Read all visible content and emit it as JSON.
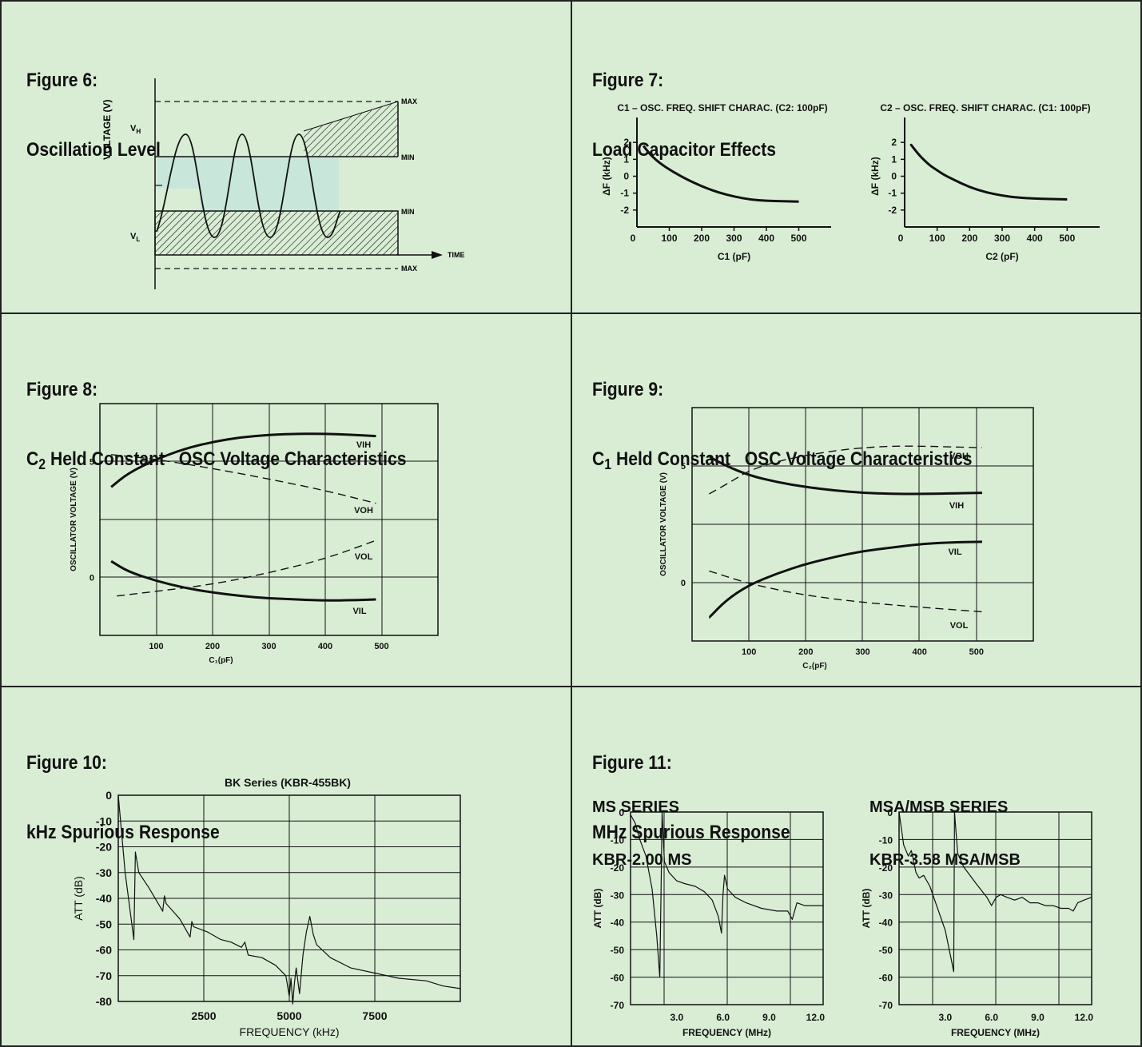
{
  "figures": [
    {
      "number": "Figure 6:",
      "title": "Oscillation Level"
    },
    {
      "number": "Figure 7:",
      "title": "Load Capacitor Effects"
    },
    {
      "number": "Figure 8:",
      "title_main": "C",
      "title_sub": "2",
      "title_rest": " Held Constant   OSC Voltage Characteristics"
    },
    {
      "number": "Figure 9:",
      "title_main": "C",
      "title_sub": "1",
      "title_rest": " Held Constant   OSC Voltage Characteristics"
    },
    {
      "number": "Figure 10:",
      "title": "kHz Spurious Response"
    },
    {
      "number": "Figure 11:",
      "title": "MHz Spurious Response"
    }
  ],
  "fig6": {
    "ylabel": "VOLTAGE (V)",
    "vh": "V",
    "vh_sub": "H",
    "vl": "V",
    "vl_sub": "L",
    "max": "MAX",
    "min": "MIN",
    "time": "TIME"
  },
  "fig11_labels": {
    "ms_series": "MS SERIES",
    "ms_model": "KBR-2.00 MS",
    "msa_series": "MSA/MSB SERIES",
    "msa_model": "KBR-3.58 MSA/MSB"
  },
  "colors": {
    "background": "#d9edd5",
    "ink": "#111111",
    "band": "#c6e4dc"
  },
  "chart_data": [
    {
      "id": "fig7a",
      "type": "line",
      "title": "C1 – OSC. FREQ. SHIFT CHARAC. (C2: 100pF)",
      "xlabel": "C1 (pF)",
      "ylabel": "ΔF (kHz)",
      "xlim": [
        0,
        600
      ],
      "ylim": [
        -3,
        3
      ],
      "xticks": [
        100,
        200,
        300,
        400,
        500
      ],
      "yticks": [
        2,
        1,
        0,
        -1,
        -2
      ],
      "series": [
        {
          "x": [
            20,
            40,
            60,
            80,
            100,
            120,
            150,
            200,
            250,
            300,
            350,
            400,
            450,
            500
          ],
          "y": [
            1.8,
            1.3,
            0.95,
            0.65,
            0.4,
            0.18,
            -0.15,
            -0.6,
            -0.95,
            -1.2,
            -1.38,
            -1.45,
            -1.48,
            -1.5
          ]
        }
      ]
    },
    {
      "id": "fig7b",
      "type": "line",
      "title": "C2 – OSC. FREQ. SHIFT CHARAC. (C1: 100pF)",
      "xlabel": "C2 (pF)",
      "ylabel": "ΔF (kHz)",
      "xlim": [
        0,
        600
      ],
      "ylim": [
        -3,
        3
      ],
      "xticks": [
        100,
        200,
        300,
        400,
        500
      ],
      "yticks": [
        2,
        1,
        0,
        -1,
        -2
      ],
      "series": [
        {
          "x": [
            20,
            40,
            60,
            80,
            100,
            120,
            150,
            200,
            250,
            300,
            350,
            400,
            450,
            500
          ],
          "y": [
            1.85,
            1.35,
            0.95,
            0.6,
            0.35,
            0.1,
            -0.2,
            -0.65,
            -0.95,
            -1.15,
            -1.27,
            -1.32,
            -1.35,
            -1.37
          ]
        }
      ]
    },
    {
      "id": "fig8",
      "type": "line",
      "xlabel": "C₁(pF)",
      "ylabel": "OSCILLATOR VOLTAGE (V)",
      "xlim": [
        0,
        600
      ],
      "ylim": [
        -2.5,
        7.5
      ],
      "xticks": [
        100,
        200,
        300,
        400,
        500
      ],
      "yticks": [
        5,
        0
      ],
      "series": [
        {
          "name": "VIH",
          "style": "solid",
          "x": [
            20,
            50,
            100,
            150,
            200,
            250,
            300,
            350,
            400,
            450,
            490
          ],
          "y": [
            3.9,
            4.5,
            5.1,
            5.55,
            5.85,
            6.05,
            6.15,
            6.2,
            6.2,
            6.15,
            6.1
          ]
        },
        {
          "name": "VOH",
          "style": "dashed",
          "x": [
            20,
            100,
            200,
            300,
            400,
            490
          ],
          "y": [
            5.3,
            5.1,
            4.7,
            4.25,
            3.75,
            3.2
          ]
        },
        {
          "name": "VOL",
          "style": "dashed",
          "x": [
            30,
            100,
            200,
            300,
            400,
            490
          ],
          "y": [
            -0.8,
            -0.6,
            -0.3,
            0.2,
            0.8,
            1.6
          ]
        },
        {
          "name": "VIL",
          "style": "solid",
          "x": [
            20,
            50,
            100,
            150,
            200,
            250,
            300,
            350,
            400,
            450,
            490
          ],
          "y": [
            0.7,
            0.25,
            -0.15,
            -0.45,
            -0.65,
            -0.8,
            -0.9,
            -0.95,
            -1.0,
            -0.98,
            -0.95
          ]
        }
      ]
    },
    {
      "id": "fig9",
      "type": "line",
      "xlabel": "C₂(pF)",
      "ylabel": "OSCILLATOR VOLTAGE (V)",
      "xlim": [
        0,
        600
      ],
      "ylim": [
        -2.5,
        7.5
      ],
      "xticks": [
        100,
        200,
        300,
        400,
        500
      ],
      "yticks": [
        5,
        0
      ],
      "series": [
        {
          "name": "VOH",
          "style": "dashed",
          "x": [
            30,
            70,
            100,
            150,
            200,
            250,
            300,
            350,
            400,
            450,
            510
          ],
          "y": [
            3.8,
            4.35,
            4.8,
            5.2,
            5.45,
            5.65,
            5.78,
            5.85,
            5.85,
            5.82,
            5.78
          ]
        },
        {
          "name": "VIH",
          "style": "solid",
          "x": [
            30,
            60,
            100,
            150,
            200,
            250,
            300,
            350,
            400,
            450,
            510
          ],
          "y": [
            5.4,
            5.0,
            4.6,
            4.3,
            4.1,
            3.95,
            3.85,
            3.8,
            3.8,
            3.82,
            3.85
          ]
        },
        {
          "name": "VIL",
          "style": "solid",
          "x": [
            30,
            60,
            100,
            150,
            200,
            250,
            300,
            350,
            400,
            450,
            510
          ],
          "y": [
            -1.5,
            -0.75,
            -0.1,
            0.4,
            0.8,
            1.1,
            1.35,
            1.5,
            1.65,
            1.72,
            1.75
          ]
        },
        {
          "name": "VOL",
          "style": "dashed",
          "x": [
            30,
            100,
            200,
            300,
            400,
            510
          ],
          "y": [
            0.5,
            -0.05,
            -0.55,
            -0.85,
            -1.05,
            -1.25
          ]
        }
      ]
    },
    {
      "id": "fig10",
      "type": "line",
      "title": "BK Series (KBR-455BK)",
      "xlabel": "FREQUENCY (kHz)",
      "ylabel": "ATT (dB)",
      "xlim": [
        0,
        10000
      ],
      "ylim": [
        -80,
        0
      ],
      "xticks": [
        2500,
        5000,
        7500
      ],
      "yticks": [
        0,
        -10,
        -20,
        -30,
        -40,
        -50,
        -60,
        -70,
        -80
      ],
      "series": [
        {
          "x": [
            0,
            200,
            455,
            500,
            600,
            900,
            1300,
            1350,
            1400,
            1800,
            2100,
            2150,
            2200,
            2600,
            3000,
            3300,
            3600,
            3700,
            3800,
            4200,
            4600,
            4900,
            5000,
            5050,
            5100,
            5150,
            5200,
            5300,
            5400,
            5500,
            5600,
            5700,
            5800,
            6200,
            6800,
            7500,
            8200,
            9000,
            9500,
            10000
          ],
          "y": [
            0,
            -30,
            -56,
            -22,
            -30,
            -36,
            -45,
            -39,
            -42,
            -48,
            -55,
            -49,
            -51,
            -53,
            -56,
            -57,
            -59,
            -57,
            -62,
            -63,
            -66,
            -70,
            -78,
            -71,
            -81,
            -73,
            -67,
            -77,
            -62,
            -53,
            -47,
            -54,
            -58,
            -63,
            -67,
            -69,
            -71,
            -72,
            -74,
            -75
          ]
        }
      ]
    },
    {
      "id": "fig11a",
      "type": "line",
      "xlabel": "FREQUENCY (MHz)",
      "ylabel": "ATT (dB)",
      "xlim": [
        0,
        12.5
      ],
      "ylim": [
        -70,
        0
      ],
      "xticks": [
        3.0,
        6.0,
        9.0,
        12.0
      ],
      "yticks": [
        0,
        -10,
        -20,
        -30,
        -40,
        -50,
        -60,
        -70
      ],
      "series": [
        {
          "x": [
            0,
            0.3,
            0.6,
            1.0,
            1.4,
            1.7,
            1.9,
            2.0,
            2.05,
            2.2,
            2.5,
            3.0,
            3.5,
            4.2,
            4.8,
            5.3,
            5.7,
            5.9,
            6.0,
            6.1,
            6.3,
            6.8,
            7.5,
            8.5,
            9.5,
            10.2,
            10.5,
            10.8,
            11.3,
            12.0,
            12.5
          ],
          "y": [
            -1,
            -4,
            -10,
            -16,
            -28,
            -45,
            -60,
            -20,
            0,
            -18,
            -22,
            -25,
            -26,
            -27,
            -29,
            -32,
            -38,
            -44,
            -30,
            -23,
            -28,
            -31,
            -33,
            -35,
            -36,
            -36,
            -39,
            -33,
            -34,
            -34,
            -34
          ]
        }
      ]
    },
    {
      "id": "fig11b",
      "type": "line",
      "xlabel": "FREQUENCY (MHz)",
      "ylabel": "ATT (dB)",
      "xlim": [
        0,
        12.5
      ],
      "ylim": [
        -70,
        0
      ],
      "xticks": [
        3.0,
        6.0,
        9.0,
        12.0
      ],
      "yticks": [
        0,
        -10,
        -20,
        -30,
        -40,
        -50,
        -60,
        -70
      ],
      "series": [
        {
          "x": [
            0,
            0.3,
            0.6,
            0.8,
            1.1,
            1.3,
            1.6,
            2.0,
            2.5,
            3.0,
            3.4,
            3.55,
            3.6,
            3.8,
            4.2,
            5.0,
            5.7,
            6.0,
            6.3,
            6.6,
            7.0,
            7.5,
            8.0,
            8.5,
            9.0,
            9.5,
            10.0,
            10.5,
            11.0,
            11.3,
            11.6,
            12.0,
            12.5
          ],
          "y": [
            0,
            -12,
            -16,
            -14,
            -22,
            -24,
            -23,
            -27,
            -35,
            -43,
            -54,
            -58,
            0,
            -15,
            -20,
            -26,
            -31,
            -34,
            -31,
            -30,
            -31,
            -32,
            -31,
            -33,
            -33,
            -34,
            -34,
            -35,
            -35,
            -36,
            -33,
            -32,
            -31
          ]
        }
      ]
    }
  ]
}
